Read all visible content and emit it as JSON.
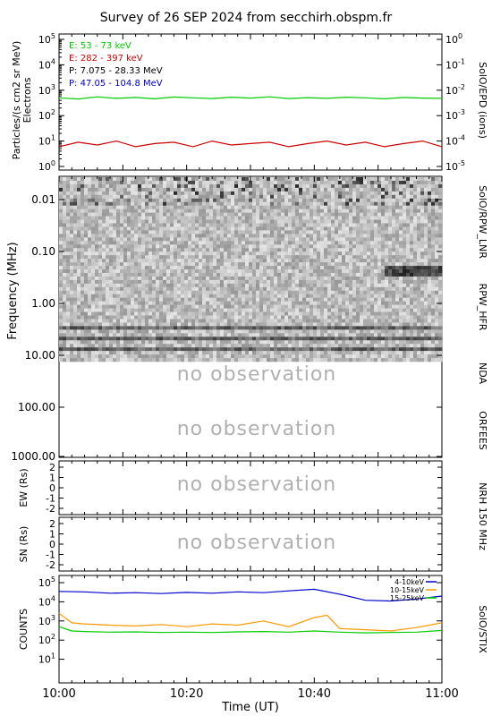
{
  "chart_data": {
    "type": "multi-panel",
    "title": "Survey of 26 SEP 2024 from secchirh.obspm.fr",
    "xlabel": "Time (UT)",
    "x_ticks": [
      "10:00",
      "10:20",
      "10:40",
      "11:00"
    ],
    "xlim": [
      "10:00",
      "11:00"
    ],
    "panels": [
      {
        "id": "epd",
        "type": "line",
        "ylabel_left": "Particles/(s cm2 sr MeV)",
        "ylabel_left_2": "Electrons",
        "ylabel_right": "SolO/EPD (ions)",
        "yscale": "log",
        "y_ticks_left": [
          "10^0",
          "10^1",
          "10^2",
          "10^3",
          "10^4",
          "10^5"
        ],
        "y_ticks_right": [
          "10^-5",
          "10^-4",
          "10^-3",
          "10^-2",
          "10^-1",
          "10^0"
        ],
        "legend": [
          {
            "label": "E: 53 - 73 keV",
            "color": "#00cc00"
          },
          {
            "label": "E: 282 - 397 keV",
            "color": "#cc0000"
          },
          {
            "label": "P: 7.075 - 28.33 MeV",
            "color": "#000000"
          },
          {
            "label": "P: 47.05 - 104.8 MeV",
            "color": "#0000cc"
          }
        ],
        "series": [
          {
            "name": "E: 53 - 73 keV",
            "color": "#00cc00",
            "x": [
              0,
              3,
              6,
              9,
              12,
              15,
              18,
              21,
              24,
              27,
              30,
              33,
              36,
              39,
              42,
              45,
              48,
              51,
              54,
              57,
              60
            ],
            "y": [
              500,
              450,
              550,
              480,
              520,
              460,
              540,
              500,
              470,
              530,
              490,
              550,
              470,
              510,
              480,
              530,
              500,
              460,
              520,
              490,
              480
            ]
          },
          {
            "name": "E: 282 - 397 keV",
            "color": "#cc0000",
            "x": [
              0,
              3,
              6,
              9,
              12,
              15,
              18,
              21,
              24,
              27,
              30,
              33,
              36,
              39,
              42,
              45,
              48,
              51,
              54,
              57,
              60
            ],
            "y": [
              6,
              9,
              7,
              10,
              6,
              8,
              9,
              6,
              10,
              7,
              8,
              9,
              6,
              8,
              10,
              7,
              9,
              6,
              8,
              10,
              6
            ]
          }
        ]
      },
      {
        "id": "rpw",
        "type": "heatmap",
        "ylabel_left": "Frequency (MHz)",
        "labels_right": [
          "SolO/RPW_LNR",
          "RPW_HFR",
          "NDA",
          "ORFEES"
        ],
        "y_ticks": [
          "0.01",
          "0.10",
          "1.00",
          "10.00",
          "100.00",
          "1000.00"
        ],
        "no_observation": [
          "no observation",
          "no observation"
        ]
      },
      {
        "id": "nrh_ew",
        "ylabel_left": "EW (Rs)",
        "y_ticks": [
          "2",
          "1",
          "0",
          "-1",
          "-2"
        ],
        "no_observation": "no observation"
      },
      {
        "id": "nrh_sn",
        "ylabel_left": "SN (Rs)",
        "y_ticks": [
          "2",
          "1",
          "0",
          "-1",
          "-2"
        ],
        "no_observation": "no observation",
        "label_right": "NRH 150 MHz"
      },
      {
        "id": "stix",
        "type": "line",
        "ylabel_left": "COUNTS",
        "ylabel_right": "SolO/STIX",
        "yscale": "log",
        "ylim": [
          1,
          100000
        ],
        "y_ticks": [
          "10^1",
          "10^2",
          "10^3",
          "10^4",
          "10^5"
        ],
        "legend": [
          {
            "label": "4-10keV",
            "color": "#0000cc"
          },
          {
            "label": "10-15keV",
            "color": "#ff9900"
          },
          {
            "label": "15-25keV",
            "color": "#00cc00"
          }
        ],
        "series": [
          {
            "name": "4-10keV",
            "color": "#0000cc",
            "x": [
              0,
              4,
              8,
              12,
              16,
              20,
              24,
              28,
              32,
              36,
              40,
              44,
              48,
              52,
              56,
              60
            ],
            "y": [
              35000,
              33000,
              28000,
              30000,
              27000,
              31000,
              28000,
              33000,
              30000,
              37000,
              45000,
              25000,
              12000,
              11000,
              14000,
              20000
            ]
          },
          {
            "name": "10-15keV",
            "color": "#ff9900",
            "x": [
              0,
              2,
              4,
              8,
              12,
              16,
              20,
              24,
              28,
              32,
              36,
              40,
              42,
              44,
              48,
              52,
              56,
              60
            ],
            "y": [
              2500,
              800,
              700,
              600,
              550,
              650,
              500,
              700,
              600,
              1000,
              500,
              1500,
              2000,
              400,
              350,
              300,
              450,
              800
            ]
          },
          {
            "name": "15-25keV",
            "color": "#00cc00",
            "x": [
              0,
              2,
              4,
              8,
              12,
              16,
              20,
              24,
              28,
              32,
              36,
              40,
              44,
              48,
              52,
              56,
              60
            ],
            "y": [
              500,
              300,
              280,
              260,
              270,
              250,
              260,
              250,
              270,
              280,
              260,
              300,
              260,
              240,
              250,
              260,
              320
            ]
          }
        ]
      }
    ]
  }
}
